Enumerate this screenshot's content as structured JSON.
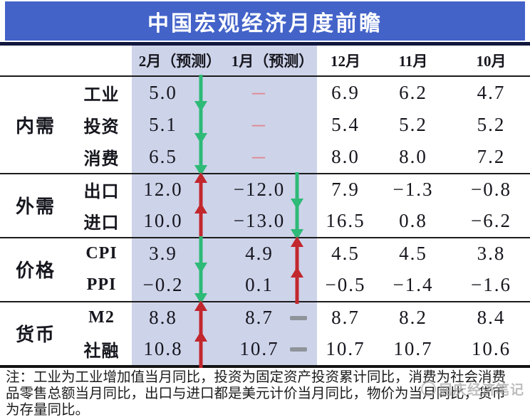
{
  "banner": {
    "title": "中国宏观经济月度前瞻"
  },
  "colors": {
    "banner_bg": "#4363c9",
    "highlight_bg": "#cdd3e9",
    "up_arrow_red": "#c1272d",
    "down_arrow_green": "#2eba77",
    "pink_dash": "#e0858d",
    "gray_dash": "#8f949b",
    "rule_dark_navy": "#11173d"
  },
  "chart_data": {
    "type": "table",
    "title": "中国宏观经济月度前瞻",
    "columns": [
      "2月（预测）",
      "1月（预测）",
      "12月",
      "11月",
      "10月"
    ],
    "legend_note": "up=红色上箭头 down=绿色下箭头 gray-dash=灰色横杠 －=粉色横杠(无数据)",
    "groups": [
      {
        "label": "内需",
        "rows": [
          {
            "label": "工业",
            "values": [
              "5.0",
              "－",
              "6.9",
              "6.2",
              "4.7"
            ],
            "trends": [
              "down",
              "",
              "",
              "",
              ""
            ]
          },
          {
            "label": "投资",
            "values": [
              "5.1",
              "－",
              "5.4",
              "5.2",
              "5.2"
            ],
            "trends": [
              "down",
              "",
              "",
              "",
              ""
            ]
          },
          {
            "label": "消费",
            "values": [
              "6.5",
              "－",
              "8.0",
              "8.0",
              "7.2"
            ],
            "trends": [
              "down",
              "",
              "",
              "",
              ""
            ]
          }
        ]
      },
      {
        "label": "外需",
        "rows": [
          {
            "label": "出口",
            "values": [
              "12.0",
              "−12.0",
              "7.9",
              "−1.3",
              "−0.8"
            ],
            "trends": [
              "up",
              "down",
              "",
              "",
              ""
            ]
          },
          {
            "label": "进口",
            "values": [
              "10.0",
              "−13.0",
              "16.5",
              "0.8",
              "−6.2"
            ],
            "trends": [
              "up",
              "down",
              "",
              "",
              ""
            ]
          }
        ]
      },
      {
        "label": "价格",
        "rows": [
          {
            "label": "CPI",
            "values": [
              "3.9",
              "4.9",
              "4.5",
              "4.5",
              "3.8"
            ],
            "trends": [
              "down",
              "up",
              "",
              "",
              ""
            ]
          },
          {
            "label": "PPI",
            "values": [
              "−0.2",
              "0.1",
              "−0.5",
              "−1.4",
              "−1.6"
            ],
            "trends": [
              "down",
              "up",
              "",
              "",
              ""
            ]
          }
        ]
      },
      {
        "label": "货币",
        "rows": [
          {
            "label": "M2",
            "values": [
              "8.8",
              "8.7",
              "8.7",
              "8.2",
              "8.4"
            ],
            "trends": [
              "up",
              "gray-dash",
              "",
              "",
              ""
            ]
          },
          {
            "label": "社融",
            "values": [
              "10.8",
              "10.7",
              "10.7",
              "10.7",
              "10.6"
            ],
            "trends": [
              "up",
              "gray-dash",
              "",
              "",
              ""
            ]
          }
        ]
      }
    ]
  },
  "footnote": {
    "lines": [
      "注：工业为工业增加值当月同比，投资为固定资产投资累计同比，消费为社会消费",
      "品零售总额当月同比，出口与进口都是美元计价当月同比，物价为当月同比，货币",
      "为存量同比。"
    ]
  },
  "watermark": {
    "text": "屈庆经济笔记"
  }
}
